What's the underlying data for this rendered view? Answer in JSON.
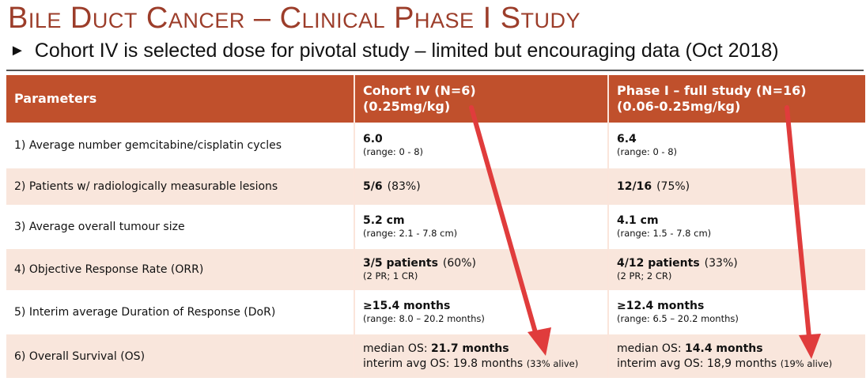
{
  "title": "Bile Duct Cancer – Clinical Phase I Study",
  "subtitle": {
    "bullet": "►",
    "text": "Cohort IV is selected dose for pivotal study – limited but encouraging data (Oct 2018)"
  },
  "table": {
    "headers": {
      "parameters": "Parameters",
      "cohort_line1": "Cohort IV  (N=6)",
      "cohort_line2": "(0.25mg/kg)",
      "phase_line1": "Phase I – full study  (N=16)",
      "phase_line2": "(0.06-0.25mg/kg)"
    },
    "rows": [
      {
        "param": "1) Average number gemcitabine/cisplatin cycles",
        "cohort": {
          "main": "6.0",
          "pct": "",
          "sub": "(range: 0 - 8)"
        },
        "phase": {
          "main": "6.4",
          "pct": "",
          "sub": "(range: 0 - 8)"
        }
      },
      {
        "param": "2) Patients w/ radiologically measurable lesions",
        "cohort": {
          "main": "5/6",
          "pct": "(83%)",
          "sub": ""
        },
        "phase": {
          "main": "12/16",
          "pct": "(75%)",
          "sub": ""
        }
      },
      {
        "param": "3) Average overall tumour size",
        "cohort": {
          "main": "5.2 cm",
          "pct": "",
          "sub": "(range: 2.1 - 7.8 cm)"
        },
        "phase": {
          "main": "4.1 cm",
          "pct": "",
          "sub": "(range: 1.5 - 7.8 cm)"
        }
      },
      {
        "param": "4) Objective Response Rate (ORR)",
        "cohort": {
          "main": "3/5 patients",
          "pct": "(60%)",
          "sub": "(2 PR; 1 CR)"
        },
        "phase": {
          "main": "4/12 patients",
          "pct": "(33%)",
          "sub": "(2 PR; 2 CR)"
        }
      },
      {
        "param": "5) Interim average Duration of Response (DoR)",
        "cohort": {
          "main": "≥15.4 months",
          "pct": "",
          "sub": "(range: 8.0 – 20.2 months)"
        },
        "phase": {
          "main": "≥12.4 months",
          "pct": "",
          "sub": "(range: 6.5 – 20.2 months)"
        }
      }
    ],
    "os_row": {
      "param": "6) Overall Survival (OS)",
      "cohort": {
        "median_label": "median OS: ",
        "median_value": "21.7 months",
        "interim_label": "interim avg OS: 19.8 months ",
        "alive": "(33% alive)"
      },
      "phase": {
        "median_label": "median OS: ",
        "median_value": "14.4 months",
        "interim_label": "interim avg OS: 18,9 months ",
        "alive": "(19% alive)"
      }
    }
  },
  "colors": {
    "header_bg": "#c0502c",
    "title": "#9c3d2a",
    "row_alt": "#f9e6dc",
    "arrow": "#e03c3c"
  }
}
